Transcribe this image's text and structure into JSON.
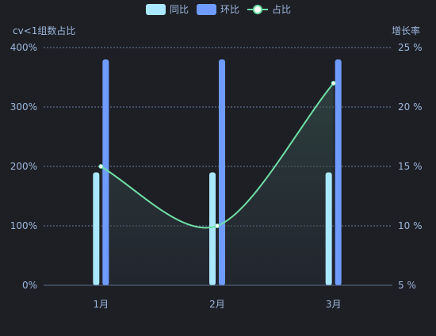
{
  "colors": {
    "background": "#1e1f25",
    "text": "#9db7dc",
    "grid": "#6b7f9e",
    "axis_line": "#5a6c8a",
    "yoy": "#a9e8ff",
    "mom": "#6f9bff",
    "share_line": "#6ee0a6",
    "share_point_fill": "#ffffff",
    "area_top": "#2a3a38"
  },
  "chart_data": {
    "type": "bar",
    "categories": [
      "1月",
      "2月",
      "3月"
    ],
    "series": [
      {
        "name": "同比",
        "type": "bar",
        "axis": "left",
        "values": [
          190,
          190,
          190
        ],
        "color": "#a9e8ff"
      },
      {
        "name": "环比",
        "type": "bar",
        "axis": "left",
        "values": [
          380,
          380,
          380
        ],
        "color": "#6f9bff"
      },
      {
        "name": "占比",
        "type": "line",
        "axis": "right",
        "smooth": true,
        "area": true,
        "values": [
          15,
          10,
          22
        ],
        "color": "#6ee0a6"
      }
    ],
    "left_axis": {
      "label": "cv<1组数占比",
      "ylim": [
        0,
        400
      ],
      "ticks": [
        "0%",
        "100%",
        "200%",
        "300%",
        "400%"
      ]
    },
    "right_axis": {
      "label": "增长率",
      "ylim": [
        5,
        25
      ],
      "ticks": [
        "5 %",
        "10 %",
        "15 %",
        "20 %",
        "25 %"
      ]
    },
    "legend_position": "top-center",
    "grid": "dashed horizontal"
  }
}
